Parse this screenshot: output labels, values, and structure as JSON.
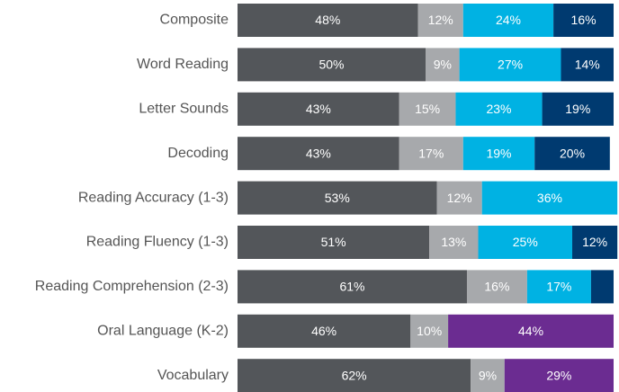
{
  "chart_data": {
    "type": "bar",
    "orientation": "horizontal",
    "stacked": true,
    "categories": [
      "Composite",
      "Word Reading",
      "Letter Sounds",
      "Decoding",
      "Reading Accuracy (1-3)",
      "Reading Fluency (1-3)",
      "Reading Comprehension (2-3)",
      "Oral Language (K-2)",
      "Vocabulary"
    ],
    "xlim": [
      0,
      100
    ],
    "series": [
      {
        "color": "#53565a",
        "values": [
          48,
          50,
          43,
          43,
          53,
          51,
          61,
          46,
          62
        ],
        "value_labels": [
          "48%",
          "50%",
          "43%",
          "43%",
          "53%",
          "51%",
          "61%",
          "46%",
          "62%"
        ]
      },
      {
        "color": "#a7a9ac",
        "values": [
          12,
          9,
          15,
          17,
          12,
          13,
          16,
          10,
          9
        ],
        "value_labels": [
          "12%",
          "9%",
          "15%",
          "17%",
          "12%",
          "13%",
          "16%",
          "10%",
          "9%"
        ]
      },
      {
        "color": "#00b2e3",
        "values": [
          24,
          27,
          23,
          19,
          36,
          25,
          17,
          null,
          null
        ],
        "value_labels": [
          "24%",
          "27%",
          "23%",
          "19%",
          "36%",
          "25%",
          "17%",
          null,
          null
        ]
      },
      {
        "color": "#003a70",
        "values": [
          16,
          14,
          19,
          20,
          null,
          12,
          6,
          null,
          null
        ],
        "value_labels": [
          "16%",
          "14%",
          "19%",
          "20%",
          null,
          "12%",
          null,
          null,
          null
        ]
      },
      {
        "color": "#6b2c91",
        "values": [
          null,
          null,
          null,
          null,
          null,
          null,
          null,
          44,
          29
        ],
        "value_labels": [
          null,
          null,
          null,
          null,
          null,
          null,
          null,
          "44%",
          "29%"
        ]
      }
    ]
  }
}
